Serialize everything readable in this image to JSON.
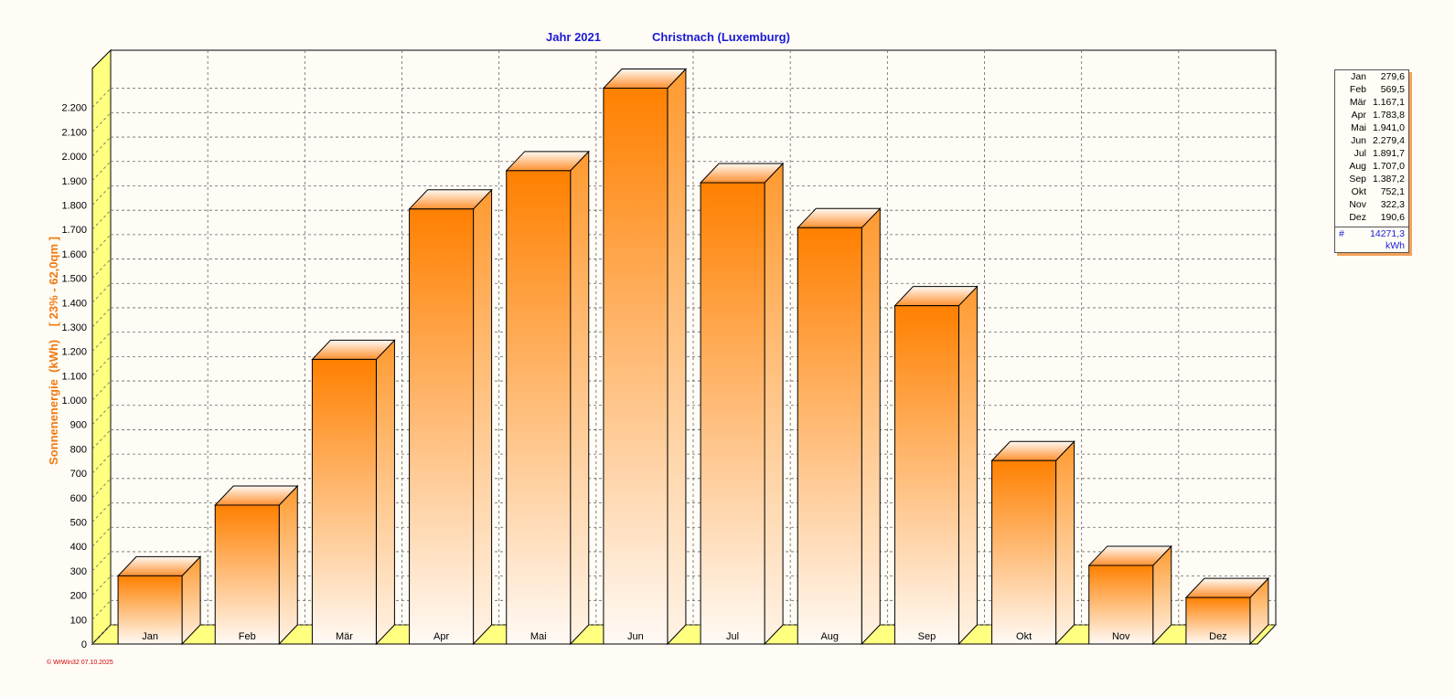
{
  "header": {
    "year_label": "Jahr  2021",
    "location_label": "Christnach (Luxemburg)"
  },
  "chart_data": {
    "type": "bar",
    "title": "Jahr  2021    Christnach (Luxemburg)",
    "ylabel": "Sonnenenergie  (kWh)    [ 23% - 62,0qm ]",
    "xlabel": "",
    "categories": [
      "Jan",
      "Feb",
      "Mär",
      "Apr",
      "Mai",
      "Jun",
      "Jul",
      "Aug",
      "Sep",
      "Okt",
      "Nov",
      "Dez"
    ],
    "values": [
      279.6,
      569.5,
      1167.1,
      1783.8,
      1941.0,
      2279.4,
      1891.7,
      1707.0,
      1387.2,
      752.1,
      322.3,
      190.6
    ],
    "ylim": [
      0,
      2300
    ],
    "yticks": [
      0,
      100,
      200,
      300,
      400,
      500,
      600,
      700,
      800,
      900,
      1000,
      1100,
      1200,
      1300,
      1400,
      1500,
      1600,
      1700,
      1800,
      1900,
      2000,
      2100,
      2200
    ],
    "ytick_labels": [
      "0",
      "100",
      "200",
      "300",
      "400",
      "500",
      "600",
      "700",
      "800",
      "900",
      "1.000",
      "1.100",
      "1.200",
      "1.300",
      "1.400",
      "1.500",
      "1.600",
      "1.700",
      "1.800",
      "1.900",
      "2.000",
      "2.100",
      "2.200"
    ],
    "grid": true,
    "style": "3d-bar",
    "colors": {
      "bar_top": "#ff8000",
      "bar_bottom": "#fffaf5",
      "wall": "#ffff80",
      "grid": "#666666"
    }
  },
  "legend": {
    "entries": [
      {
        "month": "Jan",
        "value": "279,6"
      },
      {
        "month": "Feb",
        "value": "569,5"
      },
      {
        "month": "Mär",
        "value": "1.167,1"
      },
      {
        "month": "Apr",
        "value": "1.783,8"
      },
      {
        "month": "Mai",
        "value": "1.941,0"
      },
      {
        "month": "Jun",
        "value": "2.279,4"
      },
      {
        "month": "Jul",
        "value": "1.891,7"
      },
      {
        "month": "Aug",
        "value": "1.707,0"
      },
      {
        "month": "Sep",
        "value": "1.387,2"
      },
      {
        "month": "Okt",
        "value": "752,1"
      },
      {
        "month": "Nov",
        "value": "322,3"
      },
      {
        "month": "Dez",
        "value": "190,6"
      }
    ],
    "total_symbol": "#",
    "total_value": "14271,3",
    "total_unit": "kWh"
  },
  "footer": {
    "note": "© WrWin32  07.10.2025"
  }
}
